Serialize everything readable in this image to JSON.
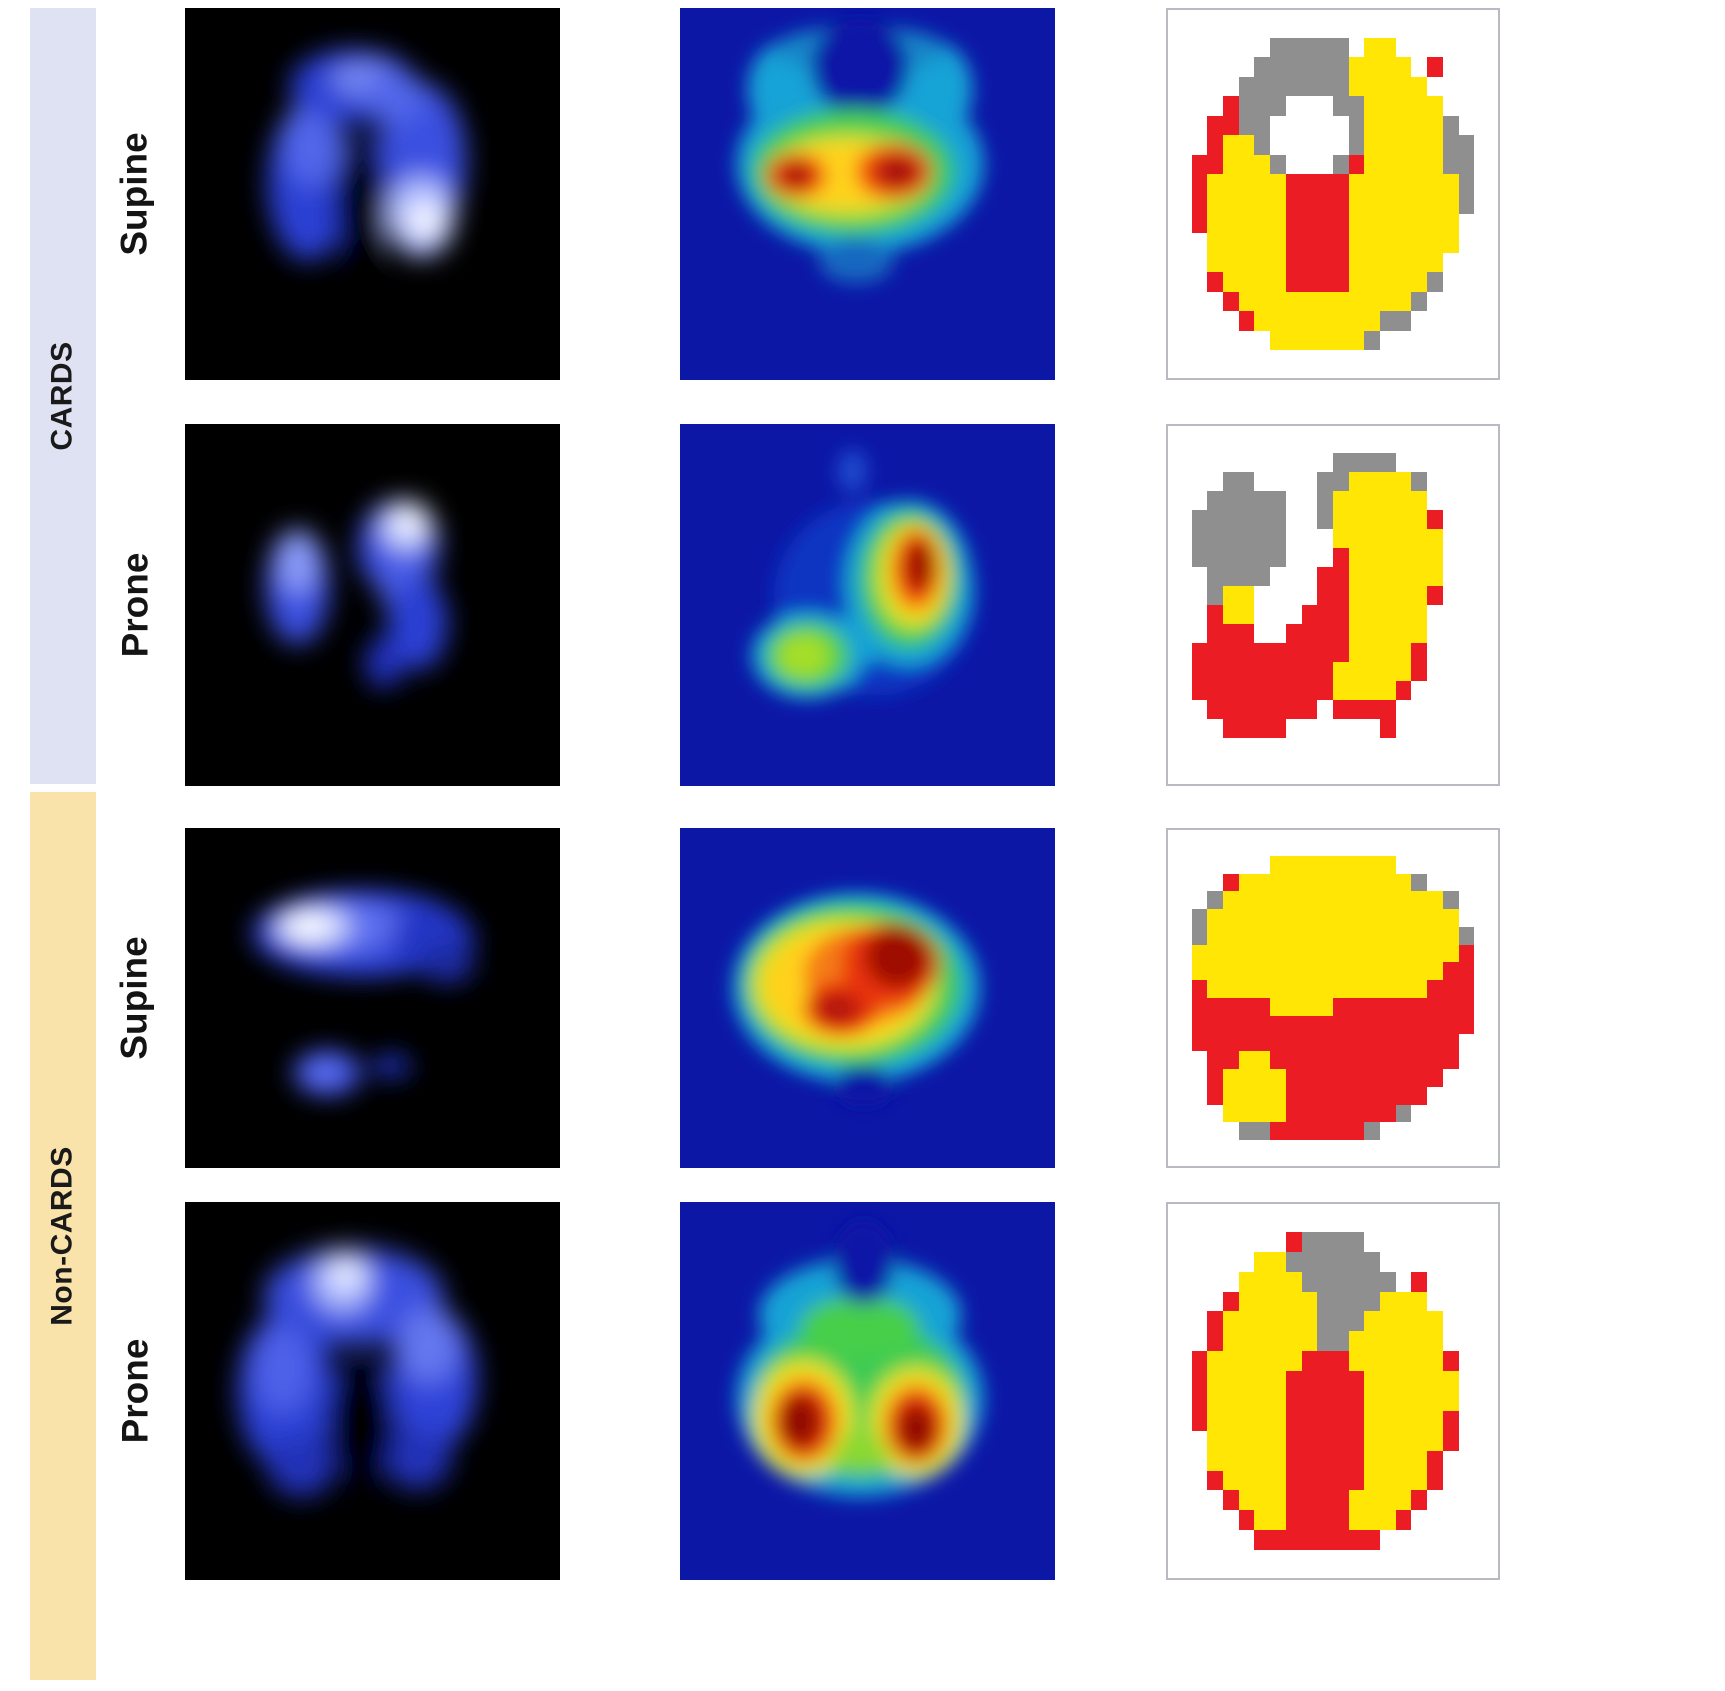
{
  "figure": {
    "groups": [
      {
        "label": "CARDS",
        "band_color": "#dfe2f2",
        "rows": [
          {
            "label": "Supine"
          },
          {
            "label": "Prone"
          }
        ]
      },
      {
        "label": "Non-CARDS",
        "band_color": "#f9e3ab",
        "rows": [
          {
            "label": "Supine"
          },
          {
            "label": "Prone"
          }
        ]
      }
    ]
  },
  "palette": {
    "page_bg": "#ffffff",
    "label_text": "#141414",
    "ventilation_bg": "#000000",
    "perfusion_bg": "#0c17a6",
    "segmentation_border": "#b7bac2",
    "segmentation": {
      ".": "#ffffff",
      "Y": "#ffe604",
      "R": "#ec1c24",
      "G": "#8f8f8f"
    }
  },
  "segmentation_maps": {
    "cards_supine": [
      "....................",
      "......GGGGG.YY......",
      ".....GGGGGGYYYY.R...",
      "....GGGGGGGYYYYY....",
      "...RGGG...GGYYYYY...",
      "..RRGG.....GYYYYYG..",
      "..RYYG.....GYYYYYGG.",
      ".RRYYYG...GRYYYYYGG.",
      ".RYYYYYRRRRYYYYYYYG.",
      ".RYYYYYRRRRYYYYYYYG.",
      ".RYYYYYRRRRYYYYYYY..",
      "..YYYYYRRRRYYYYYYY..",
      "..YYYYYRRRRYYYYYY...",
      "..RYYYYRRRRYYYYYG...",
      "...RYYYYYYYYYYYG....",
      "....RYYYYYYYYGG.....",
      "......YYYYYYG.......",
      "...................."
    ],
    "cards_prone": [
      "....................",
      "..........GGGG......",
      "...GG....GGYYYYG....",
      "..GGGGG..GYYYYYY....",
      ".GGGGGG..GYYYYYYR...",
      ".GGGGGG...YYYYYYY...",
      ".GGGGGG...RYYYYYY...",
      "..GGGG...RRYYYYYY...",
      "..GYY....RRYYYYYR...",
      "..RYY...RRRYYYYY....",
      "..RRR..RRRRYYYYY....",
      ".RRRRRRRRRRYYYYR....",
      ".RRRRRRRRRYYYYYR....",
      ".RRRRRRRRRYYYYR.....",
      "..RRRRRRR.RRRR......",
      "...RRRR......R......",
      "....................",
      "...................."
    ],
    "noncards_supine": [
      "....................",
      "......YYYYYYYY......",
      "...RYYYYYYYYYYYG....",
      "..GYYYYYYYYYYYYYYG..",
      ".GYYYYYYYYYYYYYYYY..",
      ".GYYYYYYYYYYYYYYYYG.",
      ".YYYYYYYYYYYYYYYYYR.",
      ".YYYYYYYYYYYYYYYYRR.",
      ".RYYYYYYYYYYYYYYRRR.",
      ".RRRRRYYYYRRRRRRRRR.",
      ".RRRRRRRRRRRRRRRRRR.",
      ".RRRRRRRRRRRRRRRRR..",
      "..RRYYRRRRRRRRRRRR..",
      "..RYYYYRRRRRRRRRR...",
      "..RYYYYRRRRRRRRR....",
      "...YYYYRRRRRRRG.....",
      "....GGRRRRRRG.......",
      "...................."
    ],
    "noncards_prone": [
      "....................",
      ".......RGGGG........",
      ".....YYGGGGGG.......",
      "....YYYYGGGGGG.R....",
      "...RYYYYYGGGGYYY....",
      "..RYYYYYYGGGYYYYY...",
      "..RYYYYYYGGYYYYYY...",
      ".RYYYYYYRRRYYYYYYR..",
      ".RYYYYYRRRRRYYYYYY..",
      ".RYYYYYRRRRRYYYYYY..",
      ".RYYYYYRRRRRYYYYYR..",
      "..YYYYYRRRRRYYYYYR..",
      "..YYYYYRRRRRYYYYR...",
      "..RYYYYRRRRRYYYYR...",
      "...RYYYRRRRYYYYR....",
      "....RYYRRRRYYYR.....",
      ".....RRRRRRRR.......",
      "...................."
    ]
  }
}
